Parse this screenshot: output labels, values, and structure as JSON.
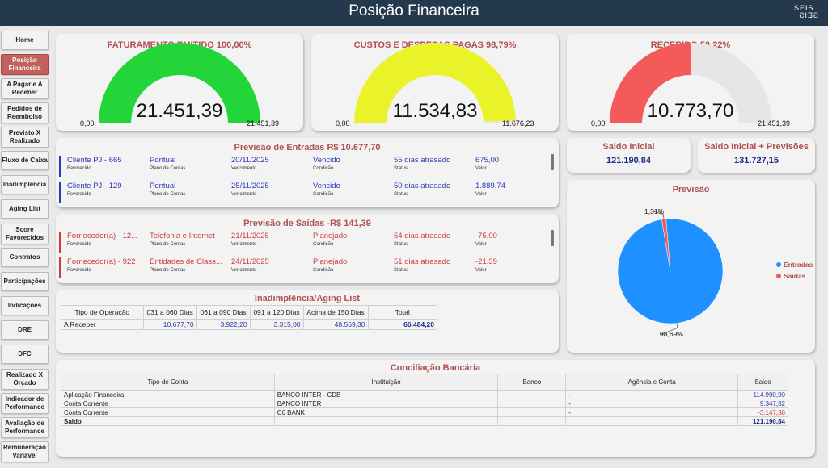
{
  "header": {
    "title": "Posição Financeira",
    "logo_top": "SEIS",
    "logo_bottom": "SEIS"
  },
  "sidebar": {
    "items": [
      {
        "label": "Home",
        "active": false
      },
      {
        "label": "Posição Financeira",
        "active": true
      },
      {
        "label": "A Pagar e A Receber",
        "active": false
      },
      {
        "label": "Pedidos de Reembolso",
        "active": false
      },
      {
        "label": "Previsto X Realizado",
        "active": false
      },
      {
        "label": "Fluxo de Caixa",
        "active": false
      },
      {
        "label": "Inadimplência",
        "active": false
      },
      {
        "label": "Aging List",
        "active": false
      },
      {
        "label": "Score Favorecidos",
        "active": false
      },
      {
        "label": "Contratos",
        "active": false
      },
      {
        "label": "Participações",
        "active": false
      },
      {
        "label": "Indicações",
        "active": false
      },
      {
        "label": "DRE",
        "active": false
      },
      {
        "label": "DFC",
        "active": false
      },
      {
        "label": "Realizado X Orçado",
        "active": false
      },
      {
        "label": "Indicador de Performance",
        "active": false
      },
      {
        "label": "Avaliação de Performance",
        "active": false
      },
      {
        "label": "Remuneração Variável",
        "active": false
      }
    ]
  },
  "gauges": [
    {
      "title": "FATURAMENTO EMITIDO 100,00%",
      "value": "21.451,39",
      "min": "0,00",
      "max": "21.451,39",
      "fraction": 1.0,
      "color": "#22d63a"
    },
    {
      "title": "CUSTOS E DESPESAS PAGAS 98,79%",
      "value": "11.534,83",
      "min": "0,00",
      "max": "11.676,23",
      "fraction": 0.9879,
      "color": "#eaf22a"
    },
    {
      "title": "RECEBIDO 50,22%",
      "value": "10.773,70",
      "min": "0,00",
      "max": "21.451,39",
      "fraction": 0.5022,
      "color": "#f55a5a"
    }
  ],
  "entradas": {
    "title": "Previsão de Entradas R$ 10.677,70",
    "labels": [
      "Favorecido",
      "Plano de Contas",
      "Vencimento",
      "Condição",
      "Status",
      "Valor"
    ],
    "color": "#2b3ab8",
    "rows": [
      [
        "Cliente PJ - 665",
        "Pontual",
        "20/11/2025",
        "Vencido",
        "55 dias atrasado",
        "675,00"
      ],
      [
        "Cliente PJ - 129",
        "Pontual",
        "25/11/2025",
        "Vencido",
        "50 dias atrasado",
        "1.889,74"
      ]
    ]
  },
  "saidas": {
    "title": "Previsão de Saídas -R$ 141,39",
    "labels": [
      "Favorecido",
      "Plano de Contas",
      "Vencimento",
      "Condição",
      "Status",
      "Valor"
    ],
    "color": "#d03a3a",
    "rows": [
      [
        "Fornecedor(a) - 12...",
        "Telefonia e Internet",
        "21/11/2025",
        "Planejado",
        "54 dias atrasado",
        "-75,00"
      ],
      [
        "Fornecedor(a) - 922",
        "Entidades de Class...",
        "24/11/2025",
        "Planejado",
        "51 dias atrasado",
        "-21,39"
      ]
    ]
  },
  "aging": {
    "title": "Inadimplência/Aging List",
    "headers": [
      "Tipo de Operação",
      "031 a 060 Dias",
      "061 a 090 Dias",
      "091 a 120 Dias",
      "Acima de 150 Dias",
      "Total"
    ],
    "rows": [
      [
        "A Receber",
        "10.677,70",
        "3.922,20",
        "3.315,00",
        "48.569,30",
        "66.484,20"
      ]
    ]
  },
  "saldo_inicial": {
    "title": "Saldo Inicial",
    "value": "121.190,84"
  },
  "saldo_previsoes": {
    "title": "Saldo Inicial + Previsões",
    "value": "131.727,15"
  },
  "chart_data": {
    "type": "pie",
    "title": "Previsão",
    "series": [
      {
        "name": "Entradas",
        "value": 98.69,
        "label": "98,69%",
        "color": "#1e90ff"
      },
      {
        "name": "Saídas",
        "value": 1.31,
        "label": "1,31%",
        "color": "#f05a5a"
      }
    ],
    "legend": "right"
  },
  "conciliacao": {
    "title": "Conciliação Bancária",
    "headers": [
      "Tipo de Conta",
      "Instituição",
      "Banco",
      "Agência e Conta",
      "Saldo"
    ],
    "rows": [
      [
        "Aplicação Financeira",
        "BANCO INTER - CDB",
        "",
        "-",
        "114.990,90"
      ],
      [
        "Conta Corrente",
        "BANCO INTER",
        "",
        "-",
        "9.347,32"
      ],
      [
        "Conta Corrente",
        "C6 BANK",
        "",
        "-",
        "-3.147,38"
      ]
    ],
    "total": [
      "Saldo",
      "",
      "",
      "",
      "121.190,84"
    ]
  }
}
